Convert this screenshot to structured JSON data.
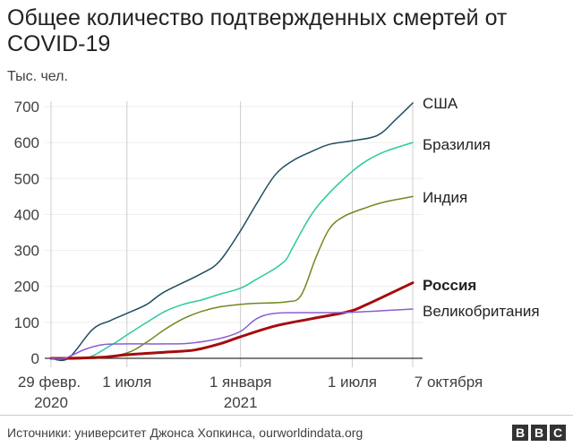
{
  "chart_data": {
    "type": "line",
    "title": "Общее количество подтвержденных смертей от COVID-19",
    "ylabel": "Тыс. чел.",
    "xlabel": "",
    "x_unit": "days since 29 Feb 2020",
    "ylim": [
      0,
      700
    ],
    "xlim": [
      0,
      586
    ],
    "yticks": [
      0,
      100,
      200,
      300,
      400,
      500,
      600,
      700
    ],
    "xticks": [
      {
        "day": 0,
        "label": "29 февр.",
        "sublabel": "2020"
      },
      {
        "day": 123,
        "label": "1 июля",
        "sublabel": ""
      },
      {
        "day": 307,
        "label": "1 января",
        "sublabel": "2021"
      },
      {
        "day": 488,
        "label": "1 июля",
        "sublabel": ""
      },
      {
        "day": 586,
        "label": "7 октября",
        "sublabel": ""
      }
    ],
    "grid": "vertical",
    "series": [
      {
        "name": "США",
        "color": "#1f4e5f",
        "width": 1.5,
        "bold": false,
        "x": [
          0,
          28,
          67,
          96,
          123,
          155,
          184,
          243,
          273,
          307,
          333,
          363,
          392,
          422,
          451,
          488,
          529,
          559,
          586
        ],
        "y": [
          0,
          0,
          80,
          105,
          125,
          150,
          185,
          235,
          270,
          355,
          430,
          510,
          550,
          575,
          595,
          605,
          620,
          665,
          710
        ]
      },
      {
        "name": "Бразилия",
        "color": "#2dc9a0",
        "width": 1.5,
        "bold": false,
        "x": [
          0,
          55,
          96,
          123,
          155,
          184,
          214,
          243,
          273,
          307,
          333,
          363,
          381,
          392,
          422,
          451,
          488,
          512,
          541,
          586
        ],
        "y": [
          0,
          0,
          35,
          65,
          100,
          130,
          150,
          162,
          178,
          195,
          220,
          250,
          275,
          310,
          400,
          460,
          520,
          550,
          575,
          600
        ]
      },
      {
        "name": "Индия",
        "color": "#6e8a1e",
        "width": 1.5,
        "bold": false,
        "x": [
          0,
          72,
          123,
          155,
          184,
          214,
          243,
          273,
          307,
          333,
          381,
          405,
          429,
          451,
          475,
          512,
          541,
          586
        ],
        "y": [
          0,
          0,
          15,
          45,
          80,
          110,
          130,
          143,
          150,
          153,
          157,
          175,
          280,
          360,
          395,
          420,
          435,
          450
        ]
      },
      {
        "name": "Россия",
        "color": "#a50c0c",
        "width": 3,
        "bold": true,
        "x": [
          0,
          22,
          84,
          123,
          184,
          232,
          273,
          307,
          363,
          422,
          482,
          512,
          586
        ],
        "y": [
          0,
          0,
          3,
          10,
          17,
          23,
          40,
          60,
          90,
          110,
          130,
          150,
          210
        ]
      },
      {
        "name": "Великобритания",
        "color": "#8a5fd0",
        "width": 1.5,
        "bold": false,
        "x": [
          0,
          22,
          55,
          84,
          123,
          184,
          225,
          273,
          307,
          333,
          363,
          422,
          488,
          586
        ],
        "y": [
          0,
          0,
          25,
          38,
          40,
          40,
          42,
          55,
          75,
          110,
          125,
          127,
          128,
          137
        ]
      }
    ]
  },
  "footer": {
    "source": "Источники: университет Джонса Хопкинса, ourworldindata.org",
    "logo": "BBC"
  }
}
